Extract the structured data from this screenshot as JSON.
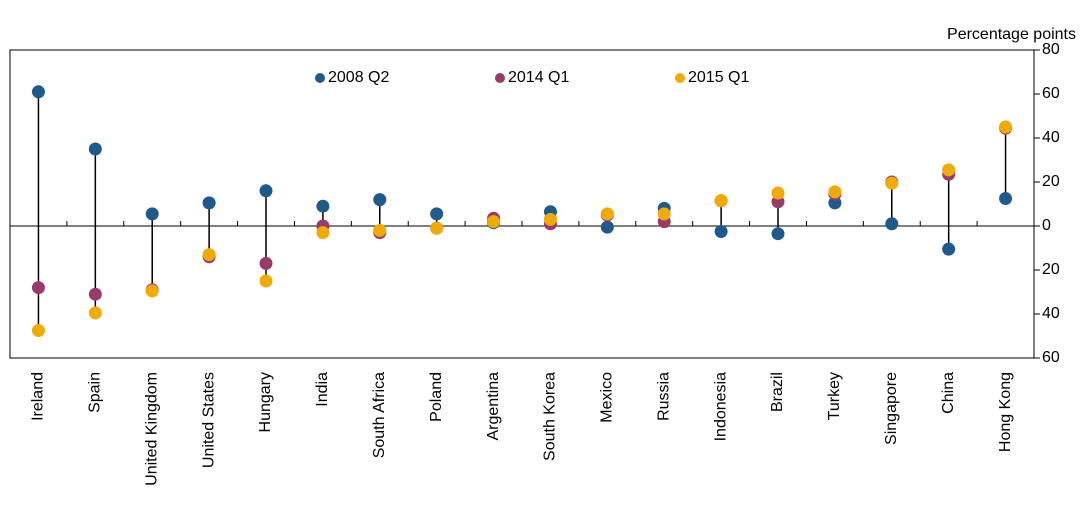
{
  "chart_data": {
    "type": "dot",
    "y_label": "Percentage points",
    "categories": [
      "Ireland",
      "Spain",
      "United Kingdom",
      "United States",
      "Hungary",
      "India",
      "South Africa",
      "Poland",
      "Argentina",
      "South Korea",
      "Mexico",
      "Russia",
      "Indonesia",
      "Brazil",
      "Turkey",
      "Singapore",
      "China",
      "Hong Kong"
    ],
    "series": [
      {
        "name": "2008 Q2",
        "color": "#1f5a8c",
        "values": [
          61,
          35,
          5.5,
          10.5,
          16,
          9,
          12,
          5.5,
          1.5,
          6.5,
          -0.5,
          8,
          -2.5,
          -3.5,
          10.5,
          1,
          -10.5,
          12.5
        ]
      },
      {
        "name": "2014 Q1",
        "color": "#993a6c",
        "values": [
          -28,
          -31,
          -29,
          -14,
          -17,
          0,
          -3,
          -1,
          3.5,
          1,
          5,
          2,
          11.5,
          11,
          14.5,
          20,
          23.5,
          44.5
        ]
      },
      {
        "name": "2015 Q1",
        "color": "#f0aa00",
        "values": [
          -47.5,
          -39.5,
          -29.5,
          -13,
          -25,
          -3,
          -2,
          -1,
          2,
          3,
          5.5,
          5.5,
          11.5,
          15,
          15.5,
          19.5,
          25.5,
          45
        ]
      }
    ],
    "ylim": [
      -60,
      80
    ],
    "yticks": [
      {
        "value": -60,
        "label": "60"
      },
      {
        "value": -40,
        "label": "40"
      },
      {
        "value": -20,
        "label": "20"
      },
      0,
      20,
      40,
      60,
      80
    ],
    "legend": "top"
  }
}
